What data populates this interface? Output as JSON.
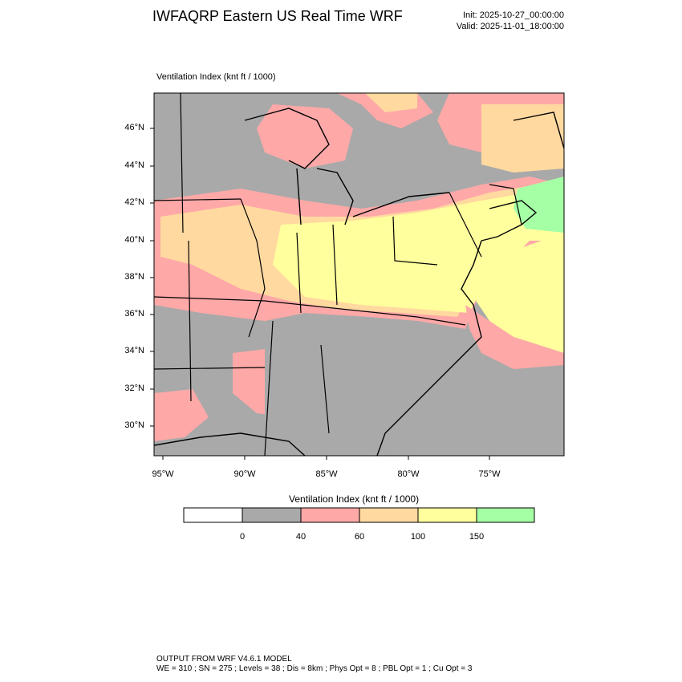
{
  "header": {
    "title": "IWFAQRP Eastern US Real Time WRF",
    "init": "Init: 2025-10-27_00:00:00",
    "valid": "Valid: 2025-11-01_18:00:00"
  },
  "map": {
    "field_label": "Ventilation Index   (knt ft / 1000)",
    "lat_labels": [
      "46°N",
      "44°N",
      "42°N",
      "40°N",
      "38°N",
      "36°N",
      "34°N",
      "32°N",
      "30°N"
    ],
    "lon_labels": [
      "95°W",
      "90°W",
      "85°W",
      "80°W",
      "75°W"
    ]
  },
  "colorbar": {
    "title": "Ventilation Index  (knt ft / 1000)",
    "levels": [
      "0",
      "40",
      "60",
      "100",
      "150"
    ],
    "bins": [
      {
        "name": "< 0",
        "color": "#ffffff"
      },
      {
        "name": "0-40",
        "color": "#a9a9a9"
      },
      {
        "name": "40-60",
        "color": "#ffa8a8"
      },
      {
        "name": "60-100",
        "color": "#ffd9a0"
      },
      {
        "name": "100-150",
        "color": "#ffff9e"
      },
      {
        "name": "> 150",
        "color": "#a5ffa5"
      }
    ]
  },
  "footer": {
    "line1": "OUTPUT FROM WRF V4.6.1 MODEL",
    "line2": "WE = 310 ; SN = 275 ; Levels = 38 ; Dis = 8km ; Phys Opt = 8 ; PBL Opt = 1 ; Cu Opt = 3"
  },
  "colors": {
    "gray": "#a9a9a9",
    "pink": "#ffa8a8",
    "orange": "#ffd9a0",
    "yellow": "#ffff9e",
    "green": "#a5ffa5"
  }
}
